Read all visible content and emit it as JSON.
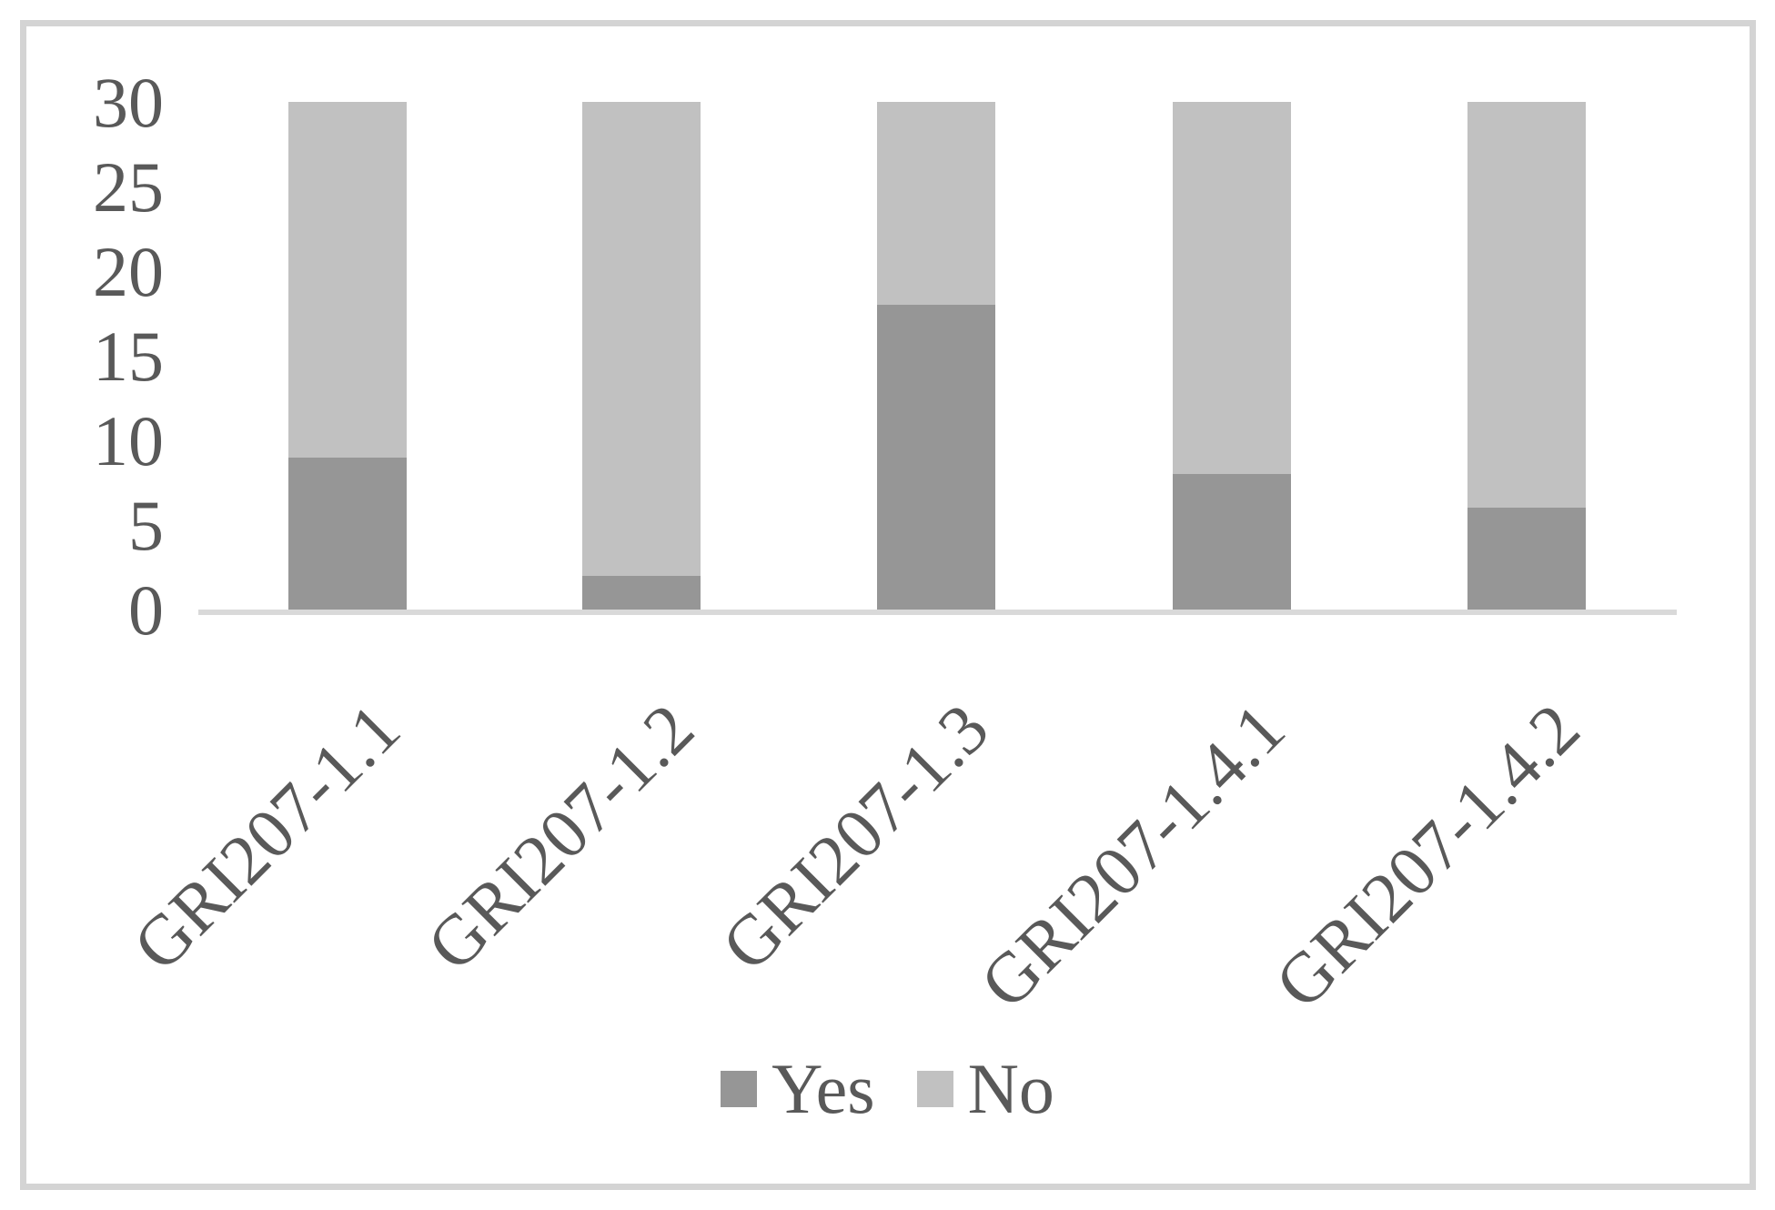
{
  "chart_data": {
    "type": "bar",
    "stacked": true,
    "title": "",
    "xlabel": "",
    "ylabel": "",
    "categories": [
      "GRI207-1.1",
      "GRI207-1.2",
      "GRI207-1.3",
      "GRI207-1.4.1",
      "GRI207-1.4.2"
    ],
    "series": [
      {
        "name": "Yes",
        "color": "#969696",
        "values": [
          9,
          2,
          18,
          8,
          6
        ]
      },
      {
        "name": "No",
        "color": "#c1c1c1",
        "values": [
          21,
          28,
          12,
          22,
          24
        ]
      }
    ],
    "bar_total": 30,
    "ylim": [
      0,
      30
    ],
    "yticks": [
      0,
      5,
      10,
      15,
      20,
      25,
      30
    ],
    "grid": false,
    "legend_position": "bottom"
  },
  "legend": {
    "items": [
      {
        "label": "Yes",
        "color": "#969696"
      },
      {
        "label": "No",
        "color": "#c1c1c1"
      }
    ]
  },
  "colors": {
    "yes": "#969696",
    "no": "#c1c1c1",
    "axis_line": "#d9d9d9",
    "text": "#595959",
    "frame_border": "#d4d4d4",
    "background": "#ffffff"
  }
}
